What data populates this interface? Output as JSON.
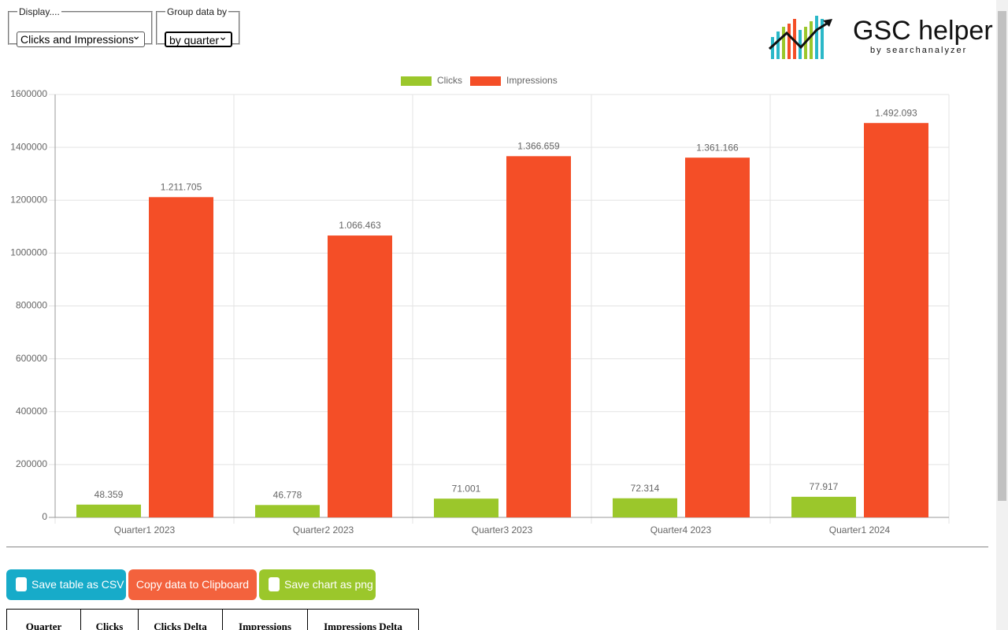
{
  "controls": {
    "display_legend": "Display....",
    "display_value": "Clicks and Impressions",
    "group_legend": "Group data by",
    "group_value": "by quarter"
  },
  "logo": {
    "title": "GSC helper",
    "subtitle": "by searchanalyzer"
  },
  "chart_data": {
    "type": "bar",
    "categories": [
      "Quarter1 2023",
      "Quarter2 2023",
      "Quarter3 2023",
      "Quarter4 2023",
      "Quarter1 2024"
    ],
    "series": [
      {
        "name": "Clicks",
        "color": "#9bc72b",
        "values": [
          48359,
          46778,
          71001,
          72314,
          77917
        ],
        "value_labels": [
          "48.359",
          "46.778",
          "71.001",
          "72.314",
          "77.917"
        ]
      },
      {
        "name": "Impressions",
        "color": "#f44e27",
        "values": [
          1211705,
          1066463,
          1366659,
          1361166,
          1492093
        ],
        "value_labels": [
          "1.211.705",
          "1.066.463",
          "1.366.659",
          "1.361.166",
          "1.492.093"
        ]
      }
    ],
    "ylim": [
      0,
      1600000
    ],
    "yticks": [
      0,
      200000,
      400000,
      600000,
      800000,
      1000000,
      1200000,
      1400000,
      1600000
    ],
    "grid": true,
    "legend": "top"
  },
  "buttons": [
    "Save table as CSV",
    "Copy data to Clipboard",
    "Save chart as png"
  ],
  "table": {
    "headers": [
      "Quarter",
      "Clicks",
      "Clicks Delta",
      "Impressions",
      "Impressions Delta"
    ]
  }
}
